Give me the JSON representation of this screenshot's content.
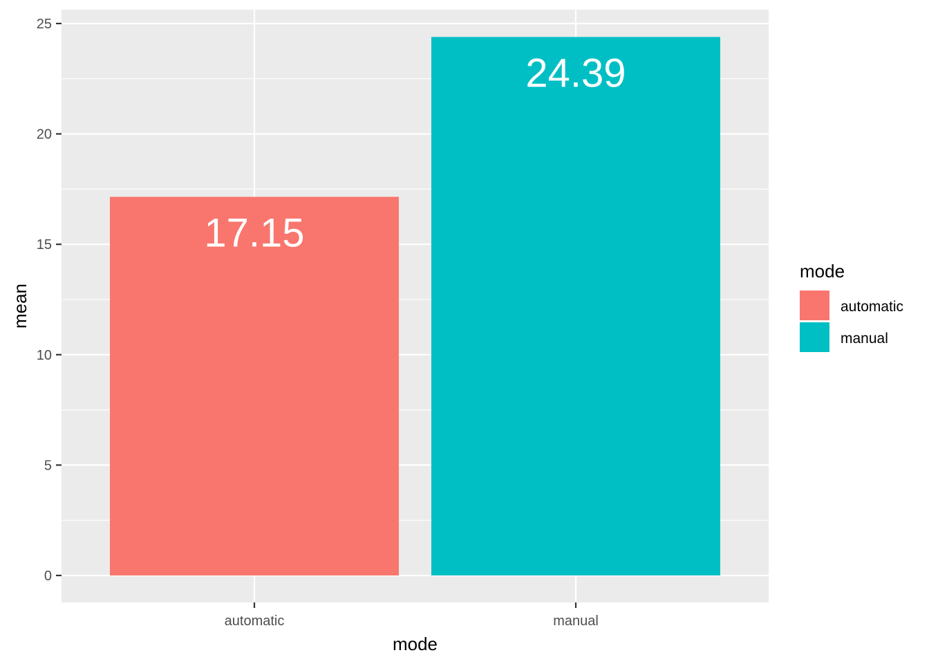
{
  "chart_data": {
    "type": "bar",
    "categories": [
      "automatic",
      "manual"
    ],
    "values": [
      17.15,
      24.39
    ],
    "data_labels": [
      "17.15",
      "24.39"
    ],
    "colors": [
      "#F8766D",
      "#00BFC4"
    ],
    "xlabel": "mode",
    "ylabel": "mean",
    "ylim": [
      0,
      25
    ],
    "yticks": [
      0,
      5,
      10,
      15,
      20,
      25
    ],
    "grid": true,
    "panel_background": "#EBEBEB",
    "gridline_color": "#FFFFFF",
    "legend": {
      "title": "mode",
      "placement": "right",
      "entries": [
        "automatic",
        "manual"
      ]
    }
  }
}
